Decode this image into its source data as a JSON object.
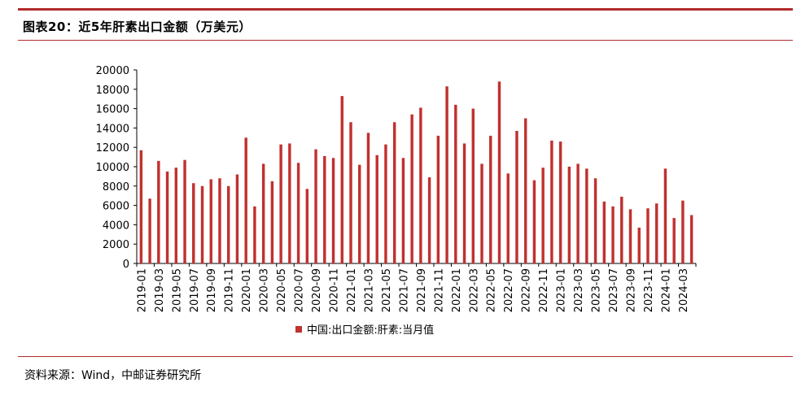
{
  "title": "图表20：近5年肝素出口金额（万美元）",
  "source": "资料来源：Wind，中邮证券研究所",
  "colors": {
    "bar": "#c0312f",
    "rule": "#b22a2a"
  },
  "chart_data": {
    "type": "bar",
    "categories": [
      "2019-01",
      "2019-02",
      "2019-03",
      "2019-04",
      "2019-05",
      "2019-06",
      "2019-07",
      "2019-08",
      "2019-09",
      "2019-10",
      "2019-11",
      "2019-12",
      "2020-01",
      "2020-02",
      "2020-03",
      "2020-04",
      "2020-05",
      "2020-06",
      "2020-07",
      "2020-08",
      "2020-09",
      "2020-10",
      "2020-11",
      "2020-12",
      "2021-01",
      "2021-02",
      "2021-03",
      "2021-04",
      "2021-05",
      "2021-06",
      "2021-07",
      "2021-08",
      "2021-09",
      "2021-10",
      "2021-11",
      "2021-12",
      "2022-01",
      "2022-02",
      "2022-03",
      "2022-04",
      "2022-05",
      "2022-06",
      "2022-07",
      "2022-08",
      "2022-09",
      "2022-10",
      "2022-11",
      "2022-12",
      "2023-01",
      "2023-02",
      "2023-03",
      "2023-04",
      "2023-05",
      "2023-06",
      "2023-07",
      "2023-08",
      "2023-09",
      "2023-10",
      "2023-11",
      "2023-12",
      "2024-01",
      "2024-02",
      "2024-03",
      "2024-04"
    ],
    "xtick_labels": [
      "2019-01",
      "2019-03",
      "2019-05",
      "2019-07",
      "2019-09",
      "2019-11",
      "2020-01",
      "2020-03",
      "2020-05",
      "2020-07",
      "2020-09",
      "2020-11",
      "2021-01",
      "2021-03",
      "2021-05",
      "2021-07",
      "2021-09",
      "2021-11",
      "2022-01",
      "2022-03",
      "2022-05",
      "2022-07",
      "2022-09",
      "2022-11",
      "2023-01",
      "2023-03",
      "2023-05",
      "2023-07",
      "2023-09",
      "2023-11",
      "2024-01",
      "2024-03"
    ],
    "series": [
      {
        "name": "中国:出口金额:肝素:当月值",
        "values": [
          11700,
          6700,
          10600,
          9500,
          9900,
          10700,
          8300,
          8000,
          8700,
          8800,
          8000,
          9200,
          13000,
          5900,
          10300,
          8500,
          12300,
          12400,
          10400,
          7700,
          11800,
          11100,
          10900,
          17300,
          14600,
          10200,
          13500,
          11200,
          12300,
          14600,
          10900,
          15400,
          16100,
          8900,
          13200,
          18300,
          16400,
          12400,
          16000,
          10300,
          13200,
          18800,
          9300,
          13700,
          15000,
          8600,
          9900,
          12700,
          12600,
          10000,
          10300,
          9800,
          8800,
          6400,
          5900,
          6900,
          5600,
          3700,
          5700,
          6200,
          9800,
          4700,
          6500,
          5000
        ]
      }
    ],
    "ylim": [
      0,
      20000
    ],
    "yticks": [
      0,
      2000,
      4000,
      6000,
      8000,
      10000,
      12000,
      14000,
      16000,
      18000,
      20000
    ],
    "xlabel": "",
    "ylabel": "",
    "grid": false,
    "legend_position": "bottom-center"
  }
}
